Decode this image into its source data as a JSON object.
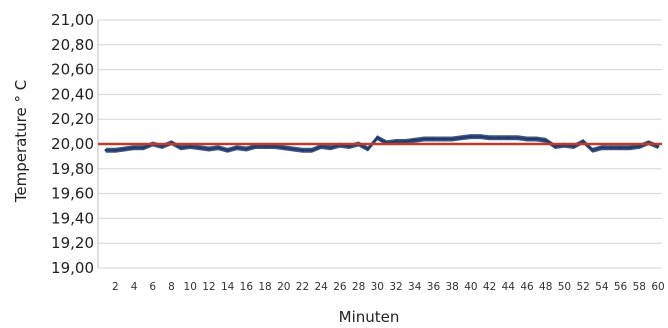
{
  "chart_data": {
    "type": "line",
    "title": "",
    "xlabel": "Minuten",
    "ylabel": "Temperature ° C",
    "ylim": [
      19.0,
      21.0
    ],
    "xlim": [
      1,
      60
    ],
    "grid": true,
    "legend": "none",
    "y_ticks": [
      "21,00",
      "20,80",
      "20,60",
      "20,40",
      "20,20",
      "20,00",
      "19,80",
      "19,60",
      "19,40",
      "19,20",
      "19,00"
    ],
    "x_ticks": [
      "2",
      "4",
      "6",
      "8",
      "10",
      "12",
      "14",
      "16",
      "18",
      "20",
      "22",
      "24",
      "26",
      "28",
      "30",
      "32",
      "34",
      "36",
      "38",
      "40",
      "42",
      "44",
      "46",
      "48",
      "50",
      "52",
      "54",
      "56",
      "58",
      "60"
    ],
    "reference_line": {
      "value": 20.0,
      "color": "#c0392b"
    },
    "series": [
      {
        "color": "#1f3a6b",
        "x": [
          1,
          2,
          3,
          4,
          5,
          6,
          7,
          8,
          9,
          10,
          11,
          12,
          13,
          14,
          15,
          16,
          17,
          18,
          19,
          20,
          21,
          22,
          23,
          24,
          25,
          26,
          27,
          28,
          29,
          30,
          31,
          32,
          33,
          34,
          35,
          36,
          37,
          38,
          39,
          40,
          41,
          42,
          43,
          44,
          45,
          46,
          47,
          48,
          49,
          50,
          51,
          52,
          53,
          54,
          55,
          56,
          57,
          58,
          59,
          60
        ],
        "values": [
          19.95,
          19.95,
          19.96,
          19.97,
          19.97,
          20.0,
          19.98,
          20.01,
          19.97,
          19.98,
          19.97,
          19.96,
          19.97,
          19.95,
          19.97,
          19.96,
          19.98,
          19.98,
          19.98,
          19.97,
          19.96,
          19.95,
          19.95,
          19.98,
          19.97,
          19.99,
          19.98,
          20.0,
          19.96,
          20.05,
          20.01,
          20.02,
          20.02,
          20.03,
          20.04,
          20.04,
          20.04,
          20.04,
          20.05,
          20.06,
          20.06,
          20.05,
          20.05,
          20.05,
          20.05,
          20.04,
          20.04,
          20.03,
          19.98,
          19.99,
          19.98,
          20.02,
          19.95,
          19.97,
          19.97,
          19.97,
          19.97,
          19.98,
          20.01,
          19.98
        ]
      }
    ]
  }
}
